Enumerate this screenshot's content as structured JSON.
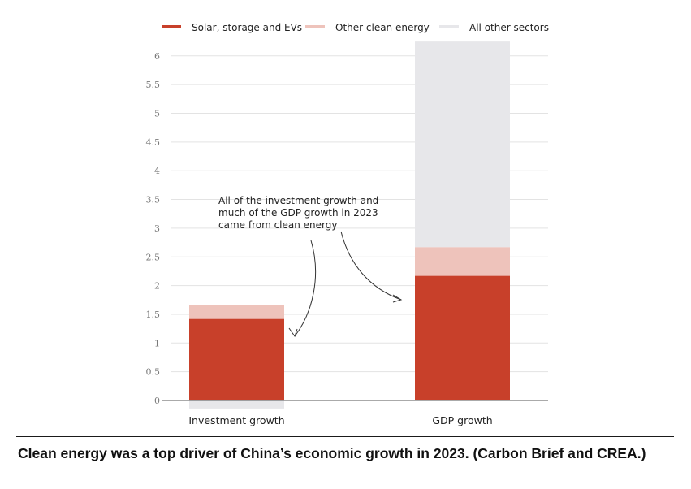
{
  "chart_data": {
    "type": "bar",
    "stacked": true,
    "categories": [
      "Investment growth",
      "GDP growth"
    ],
    "series": [
      {
        "name": "Solar, storage and EVs",
        "color": "#c8402a",
        "values": [
          1.42,
          2.17
        ]
      },
      {
        "name": "Other clean energy",
        "color": "#eec3bb",
        "values": [
          0.24,
          0.5
        ]
      },
      {
        "name": "All other sectors",
        "color": "#e7e7ea",
        "values": [
          -0.14,
          3.58
        ]
      }
    ],
    "y_ticks": [
      "0",
      "0.5",
      "1",
      "1.5",
      "2",
      "2.5",
      "3",
      "3.5",
      "4",
      "4.5",
      "5",
      "5.5",
      "6"
    ],
    "ylim": [
      0,
      6
    ],
    "grid": true,
    "legend_position": "top",
    "annotation": [
      "All of the investment growth and",
      "much of the GDP growth in 2023",
      "came from clean energy"
    ]
  },
  "caption": "Clean energy was a top driver of China’s economic growth in 2023. (Carbon Brief and CREA.)"
}
